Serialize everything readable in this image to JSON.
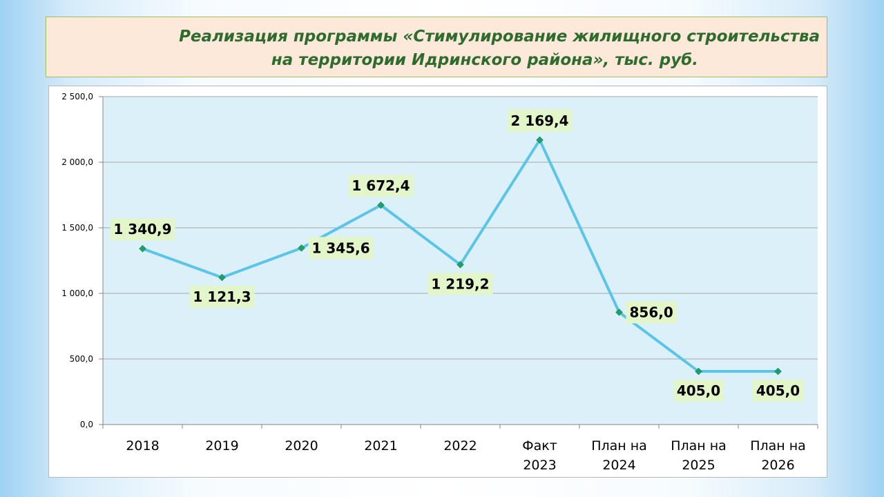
{
  "slide": {
    "title_line1": "Реализация программы «Стимулирование жилищного строительства",
    "title_line2": "на территории Идринского района», тыс. руб."
  },
  "colors": {
    "plot_bg": "#dcf0f9",
    "line": "#5bc5e8",
    "marker": "#1e9e6a",
    "label_bg": "#e2f6c9",
    "gridline": "#a6a6a6",
    "title_text": "#2e6b2e",
    "title_bg": "#fde9d9"
  },
  "chart_data": {
    "type": "line",
    "categories": [
      [
        "2018"
      ],
      [
        "2019"
      ],
      [
        "2020"
      ],
      [
        "2021"
      ],
      [
        "2022"
      ],
      [
        "Факт",
        "2023"
      ],
      [
        "План на",
        "2024"
      ],
      [
        "План на",
        "2025"
      ],
      [
        "План на",
        "2026"
      ]
    ],
    "values": [
      1340.9,
      1121.3,
      1345.6,
      1672.4,
      1219.2,
      2169.4,
      856.0,
      405.0,
      405.0
    ],
    "value_labels": [
      "1 340,9",
      "1 121,3",
      "1 345,6",
      "1 672,4",
      "1 219,2",
      "2 169,4",
      "856,0",
      "405,0",
      "405,0"
    ],
    "label_positions": [
      "above",
      "below",
      "right",
      "above",
      "below",
      "above",
      "right",
      "below",
      "below"
    ],
    "yticks": [
      0,
      500,
      1000,
      1500,
      2000,
      2500
    ],
    "ytick_labels": [
      "0,0",
      "500,0",
      "1 000,0",
      "1 500,0",
      "2 000,0",
      "2 500,0"
    ],
    "ylim": [
      0,
      2500
    ],
    "grid": true,
    "legend": "none",
    "marker": "diamond"
  }
}
